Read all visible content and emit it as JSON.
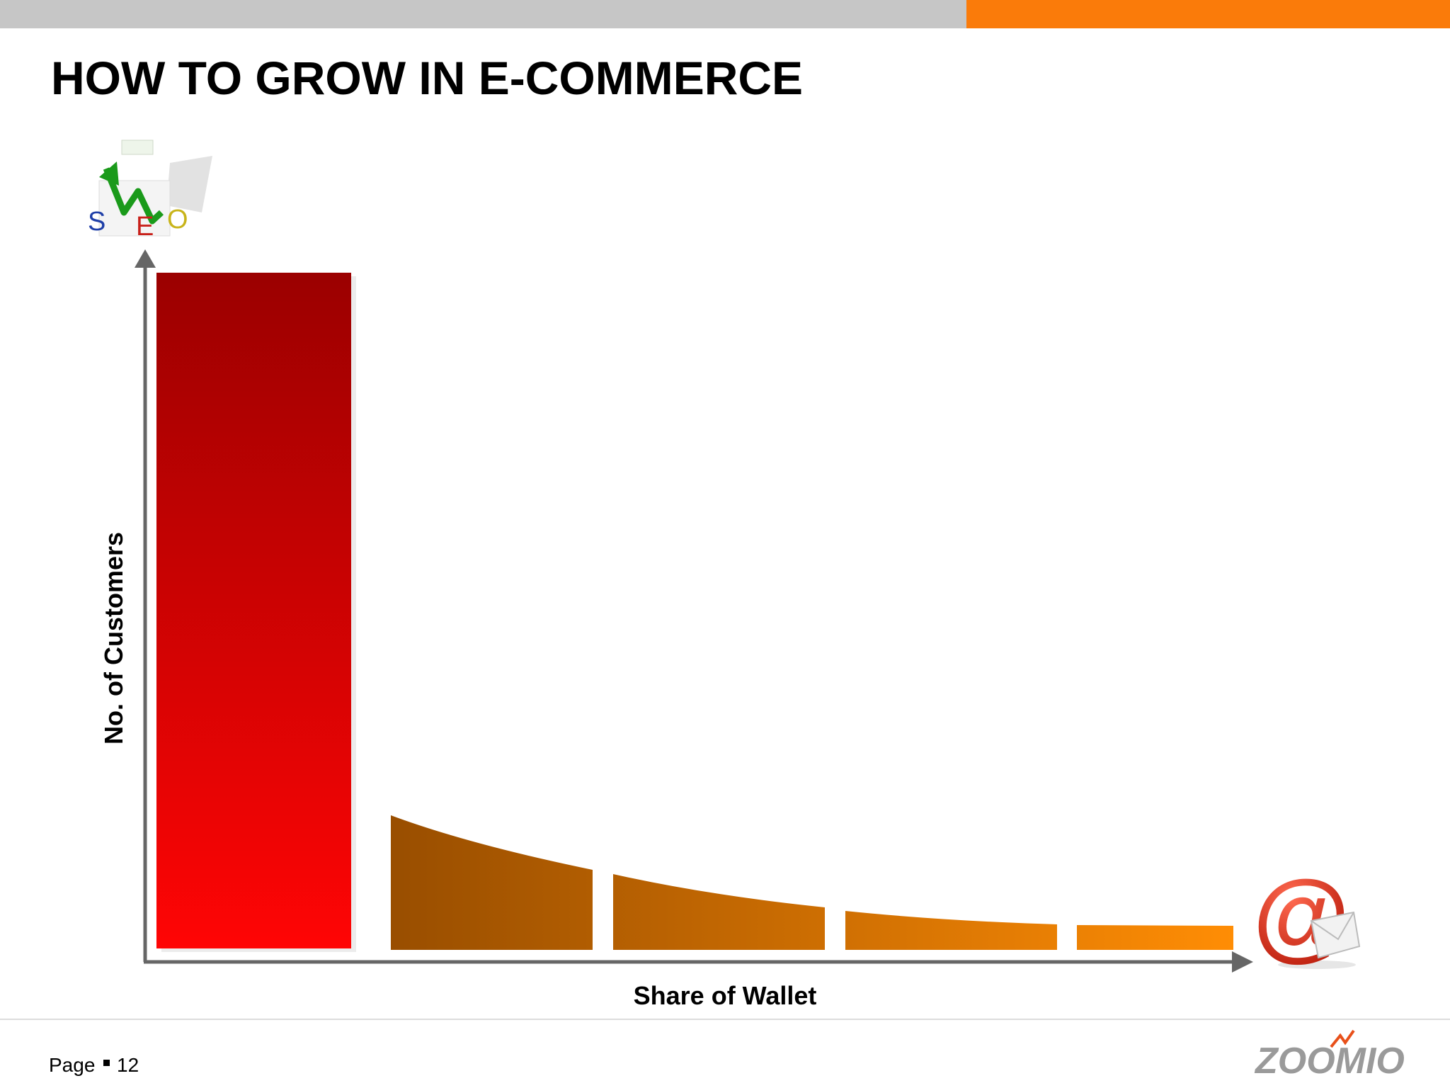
{
  "slide": {
    "title": "HOW TO GROW IN E-COMMERCE",
    "y_axis_label": "No. of Customers",
    "x_axis_label": "Share of Wallet",
    "seo_icon": [
      "S",
      "E",
      "O"
    ],
    "icon_at": "@"
  },
  "footer": {
    "page_label": "Page",
    "page_number": "12",
    "logo": "ZOOMIO"
  }
}
